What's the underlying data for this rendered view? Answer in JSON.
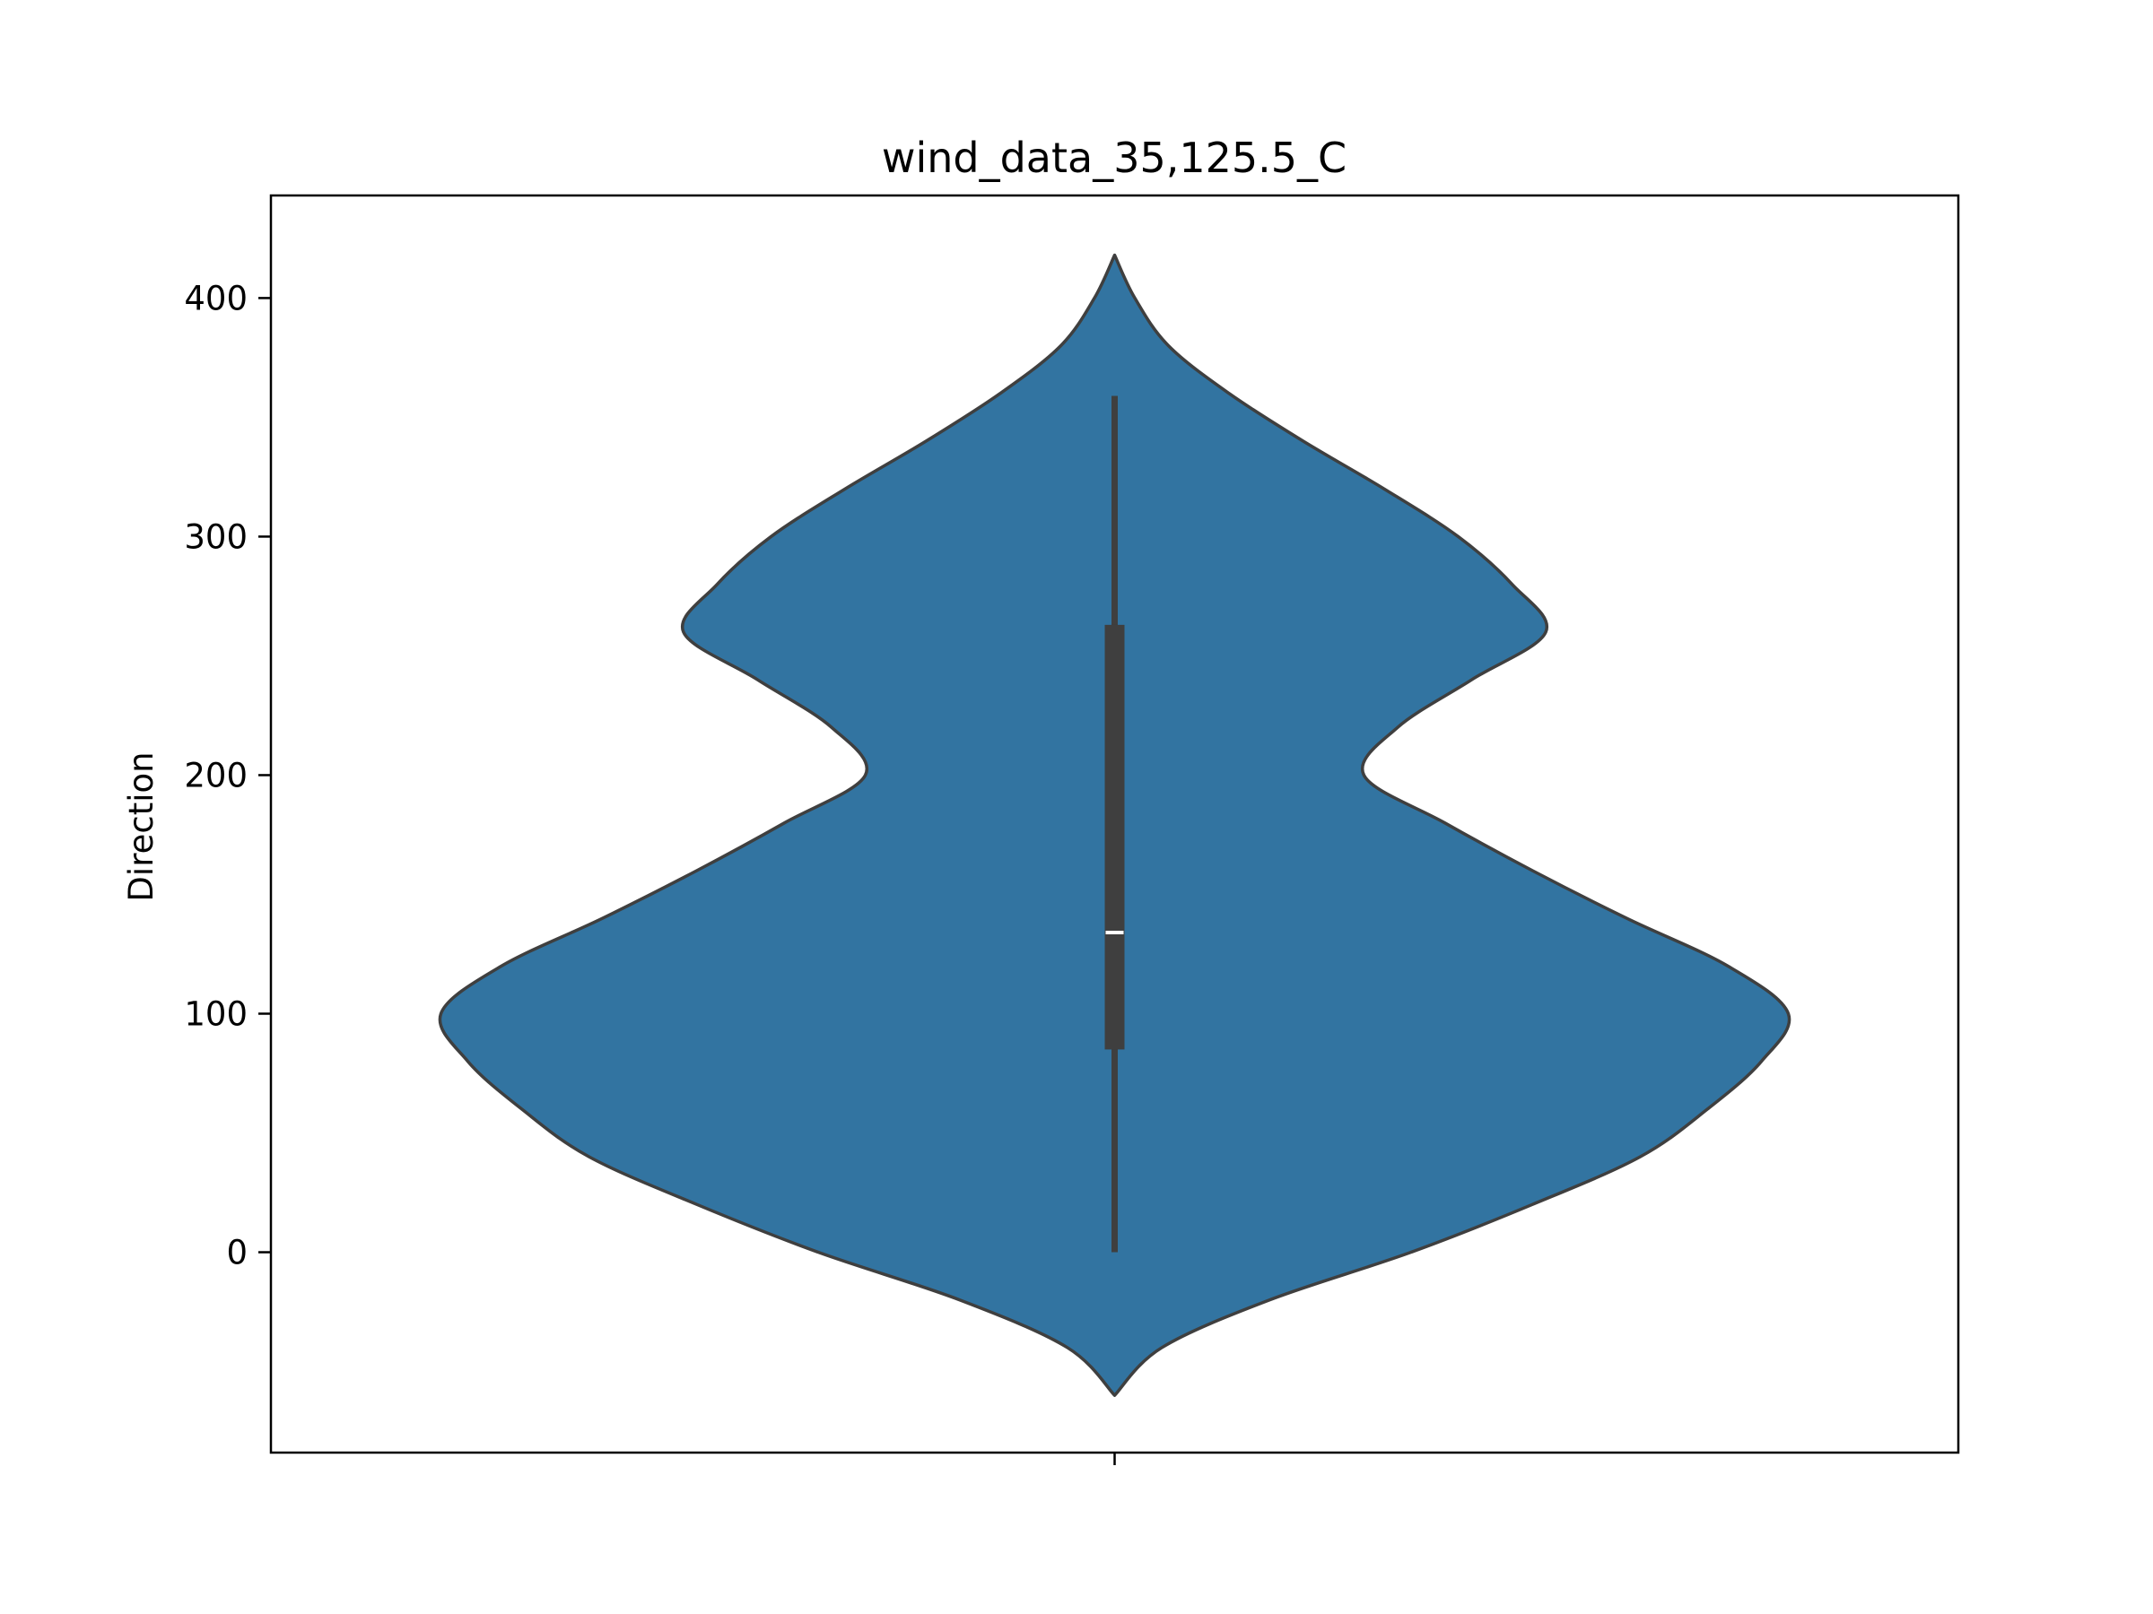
{
  "chart_data": {
    "type": "violin",
    "title": "wind_data_35,125.5_C",
    "xlabel": "",
    "ylabel": "Direction",
    "ylim": [
      -84,
      443
    ],
    "yticks": [
      0,
      100,
      200,
      300,
      400
    ],
    "grid": false,
    "legend": "none",
    "colors": {
      "violin_fill": "#3274a1",
      "violin_edge": "#3f3f3f",
      "box": "#3f3f3f",
      "median": "#ffffff"
    },
    "violin": {
      "density_max_at": 100,
      "density_profile": [
        {
          "y": -60,
          "density": 0.0
        },
        {
          "y": -40,
          "density": 0.07
        },
        {
          "y": -20,
          "density": 0.23
        },
        {
          "y": 0,
          "density": 0.44
        },
        {
          "y": 20,
          "density": 0.62
        },
        {
          "y": 40,
          "density": 0.78
        },
        {
          "y": 60,
          "density": 0.88
        },
        {
          "y": 80,
          "density": 0.96
        },
        {
          "y": 100,
          "density": 1.0
        },
        {
          "y": 120,
          "density": 0.91
        },
        {
          "y": 140,
          "density": 0.76
        },
        {
          "y": 160,
          "density": 0.62
        },
        {
          "y": 180,
          "density": 0.49
        },
        {
          "y": 200,
          "density": 0.37
        },
        {
          "y": 220,
          "density": 0.42
        },
        {
          "y": 240,
          "density": 0.53
        },
        {
          "y": 260,
          "density": 0.64
        },
        {
          "y": 280,
          "density": 0.59
        },
        {
          "y": 300,
          "density": 0.51
        },
        {
          "y": 320,
          "density": 0.4
        },
        {
          "y": 340,
          "density": 0.28
        },
        {
          "y": 360,
          "density": 0.17
        },
        {
          "y": 380,
          "density": 0.08
        },
        {
          "y": 400,
          "density": 0.03
        },
        {
          "y": 418,
          "density": 0.0
        }
      ],
      "whisker_low": 0,
      "whisker_high": 359,
      "q1": 85,
      "median": 134,
      "q3": 263
    }
  }
}
